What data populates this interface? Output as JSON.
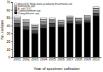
{
  "chart_data": {
    "type": "bar",
    "stacked": true,
    "x_label": "Year of specimen collection",
    "y_label": "No. isolates",
    "categories": [
      "2001",
      "2002",
      "2003",
      "2004",
      "2005",
      "2006",
      "2007",
      "2008",
      "2009",
      "2010"
    ],
    "series": [
      {
        "name": "Campylobacter spp.",
        "color": "#000000",
        "values": [
          38,
          35,
          30,
          37,
          38,
          38,
          43,
          42,
          44,
          52
        ]
      },
      {
        "name": "Cryptosporidium spp.",
        "color": "#444444",
        "values": [
          5,
          4,
          4,
          4,
          5,
          3,
          3,
          3,
          3,
          4
        ]
      },
      {
        "name": "E. coli O157",
        "color": "#888888",
        "values": [
          4,
          5,
          4,
          4,
          3,
          3,
          3,
          2,
          3,
          3
        ]
      },
      {
        "name": "Salmonella spp.",
        "color": "#bbbbbb",
        "values": [
          3,
          2,
          2,
          3,
          2,
          2,
          2,
          2,
          2,
          3
        ]
      },
      {
        "name": "Non-O157 Shiga toxin–producing Escherichia coli",
        "color": "#ffffff",
        "values": [
          2,
          2,
          2,
          2,
          2,
          1,
          1,
          1,
          1,
          2
        ]
      }
    ],
    "ylim": [
      0,
      70
    ],
    "yticks": [
      0,
      10,
      20,
      30,
      40,
      50,
      60,
      70
    ],
    "legend": "upper left"
  }
}
